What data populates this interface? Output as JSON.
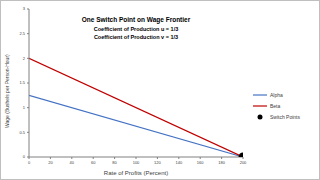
{
  "chart_data": {
    "type": "line",
    "title": "One Switch Point on Wage Frontier",
    "annotations": [
      "Coefficient of Production u = 1/3",
      "Coefficient of Production v = 1/3"
    ],
    "x_label": "Rate of Profits (Percent)",
    "y_label": "Wage (Bushels per Person-Hour)",
    "xlim": [
      0,
      200
    ],
    "xticks": [
      0,
      20,
      40,
      60,
      80,
      100,
      120,
      140,
      160,
      180,
      200
    ],
    "ylim": [
      0,
      3
    ],
    "yticks": [
      0,
      0.5,
      1,
      1.5,
      2,
      2.5,
      3
    ],
    "grid": false,
    "legend": "right",
    "series": [
      {
        "name": "Alpha",
        "color": "#4472c4",
        "type": "line",
        "marker": "none",
        "x": [
          0,
          200
        ],
        "values": [
          1.25,
          0
        ]
      },
      {
        "name": "Beta",
        "color": "#c00000",
        "type": "line",
        "marker": "none",
        "x": [
          0,
          200
        ],
        "values": [
          2,
          0
        ]
      },
      {
        "name": "Switch Points",
        "color": "#000000",
        "type": "scatter",
        "marker": "circle",
        "x": [
          200
        ],
        "values": [
          0
        ]
      }
    ]
  }
}
